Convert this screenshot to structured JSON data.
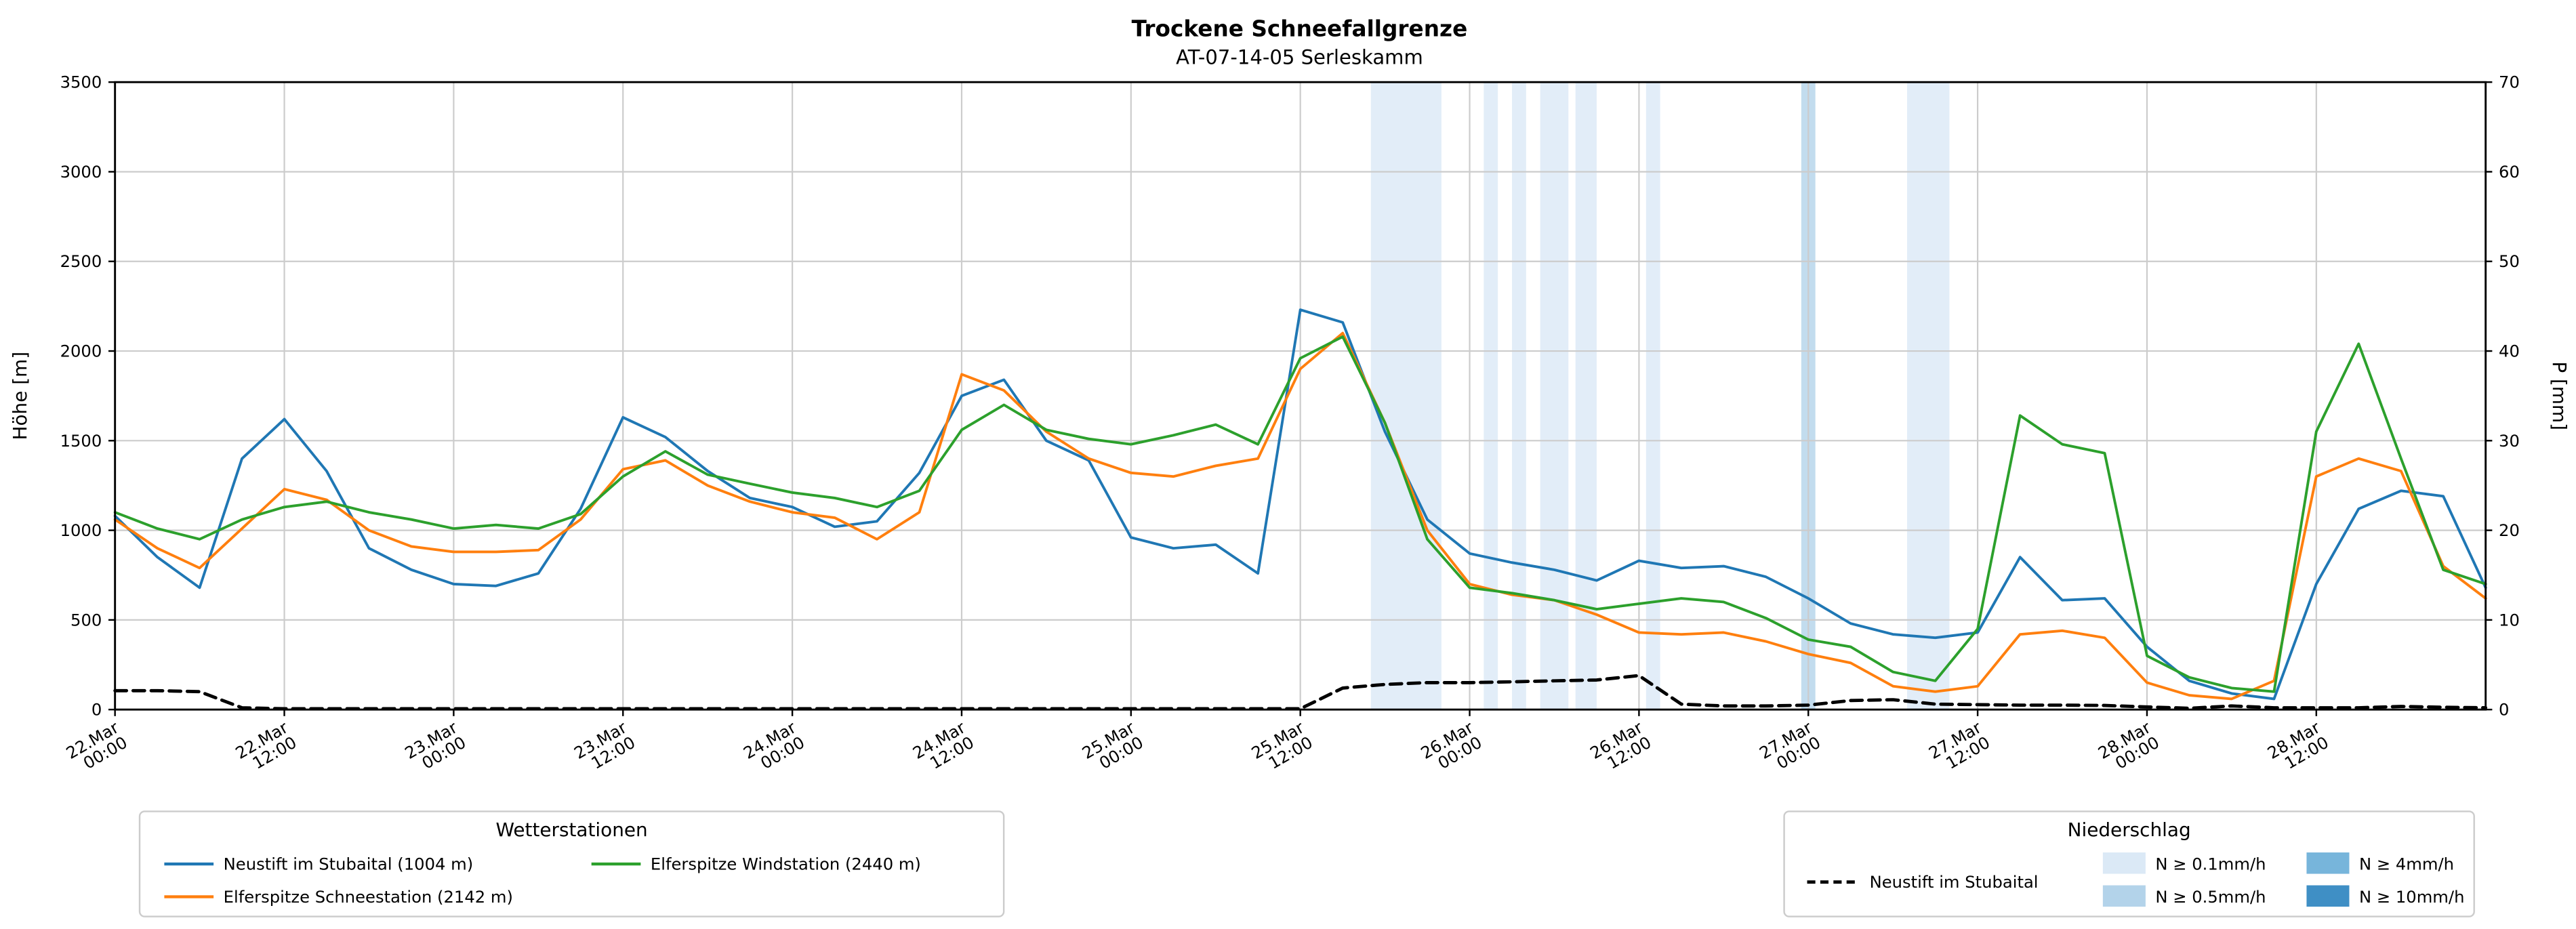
{
  "title": "Trockene Schneefallgrenze",
  "subtitle": "AT-07-14-05 Serleskamm",
  "axes": {
    "y_left_label": "Höhe [m]",
    "y_right_label": "P [mm]",
    "y_left_ticks": [
      0,
      500,
      1000,
      1500,
      2000,
      2500,
      3000,
      3500
    ],
    "y_right_ticks": [
      0,
      10,
      20,
      30,
      40,
      50,
      60,
      70
    ],
    "x_tick_hours": [
      0,
      12,
      24,
      36,
      48,
      60,
      72,
      84,
      96,
      108,
      120,
      132,
      144,
      156
    ],
    "x_tick_labels": [
      [
        "22.Mar",
        "00:00"
      ],
      [
        "22.Mar",
        "12:00"
      ],
      [
        "23.Mar",
        "00:00"
      ],
      [
        "23.Mar",
        "12:00"
      ],
      [
        "24.Mar",
        "00:00"
      ],
      [
        "24.Mar",
        "12:00"
      ],
      [
        "25.Mar",
        "00:00"
      ],
      [
        "25.Mar",
        "12:00"
      ],
      [
        "26.Mar",
        "00:00"
      ],
      [
        "26.Mar",
        "12:00"
      ],
      [
        "27.Mar",
        "00:00"
      ],
      [
        "27.Mar",
        "12:00"
      ],
      [
        "28.Mar",
        "00:00"
      ],
      [
        "28.Mar",
        "12:00"
      ]
    ]
  },
  "chart_data": {
    "type": "line",
    "x_unit": "hours since 22.Mar 00:00",
    "x_range_hours": [
      0,
      168
    ],
    "ylim_left": [
      0,
      3500
    ],
    "ylim_right": [
      0,
      70
    ],
    "grid": true,
    "x_hours": [
      0,
      3,
      6,
      9,
      12,
      15,
      18,
      21,
      24,
      27,
      30,
      33,
      36,
      39,
      42,
      45,
      48,
      51,
      54,
      57,
      60,
      63,
      66,
      69,
      72,
      75,
      78,
      81,
      84,
      87,
      90,
      93,
      96,
      99,
      102,
      105,
      108,
      111,
      114,
      117,
      120,
      123,
      126,
      129,
      132,
      135,
      138,
      141,
      144,
      147,
      150,
      153,
      156,
      159,
      162,
      165,
      168
    ],
    "series": [
      {
        "name": "Neustift im Stubaital (1004 m)",
        "color": "#1f77b4",
        "style": "solid",
        "axis": "left",
        "values": [
          1080,
          850,
          680,
          1400,
          1620,
          1330,
          900,
          780,
          700,
          690,
          760,
          1120,
          1630,
          1520,
          1330,
          1180,
          1130,
          1020,
          1050,
          1320,
          1750,
          1840,
          1500,
          1390,
          960,
          900,
          920,
          760,
          2230,
          2160,
          1550,
          1060,
          870,
          820,
          780,
          720,
          830,
          790,
          800,
          740,
          620,
          480,
          420,
          400,
          430,
          850,
          610,
          620,
          350,
          160,
          90,
          60,
          700,
          1120,
          1220,
          1190,
          680
        ]
      },
      {
        "name": "Elferspitze Schneestation (2142 m)",
        "color": "#ff7f0e",
        "style": "solid",
        "axis": "left",
        "values": [
          1060,
          900,
          790,
          1010,
          1230,
          1170,
          1000,
          910,
          880,
          880,
          890,
          1060,
          1340,
          1390,
          1250,
          1160,
          1100,
          1070,
          950,
          1100,
          1870,
          1780,
          1550,
          1400,
          1320,
          1300,
          1360,
          1400,
          1900,
          2100,
          1600,
          1000,
          700,
          640,
          610,
          530,
          430,
          420,
          430,
          380,
          310,
          260,
          130,
          100,
          130,
          420,
          440,
          400,
          150,
          80,
          60,
          160,
          1300,
          1400,
          1330,
          800,
          620
        ]
      },
      {
        "name": "Elferspitze Windstation (2440 m)",
        "color": "#2ca02c",
        "style": "solid",
        "axis": "left",
        "values": [
          1100,
          1010,
          950,
          1060,
          1130,
          1160,
          1100,
          1060,
          1010,
          1030,
          1010,
          1090,
          1300,
          1440,
          1310,
          1260,
          1210,
          1180,
          1130,
          1220,
          1560,
          1700,
          1560,
          1510,
          1480,
          1530,
          1590,
          1480,
          1960,
          2080,
          1600,
          950,
          680,
          650,
          610,
          560,
          590,
          620,
          600,
          510,
          390,
          350,
          210,
          160,
          450,
          1640,
          1480,
          1430,
          300,
          180,
          120,
          100,
          1550,
          2040,
          1400,
          780,
          700
        ]
      },
      {
        "name": "Neustift im Stubaital",
        "color": "#000000",
        "style": "dashed",
        "axis": "right",
        "values": [
          2.1,
          2.1,
          2.0,
          0.2,
          0.1,
          0.1,
          0.1,
          0.1,
          0.1,
          0.1,
          0.1,
          0.1,
          0.1,
          0.1,
          0.1,
          0.1,
          0.1,
          0.1,
          0.1,
          0.1,
          0.1,
          0.1,
          0.1,
          0.1,
          0.1,
          0.1,
          0.1,
          0.1,
          0.1,
          2.4,
          2.8,
          3.0,
          3.0,
          3.1,
          3.2,
          3.3,
          3.8,
          0.6,
          0.4,
          0.4,
          0.5,
          1.0,
          1.1,
          0.6,
          0.55,
          0.5,
          0.5,
          0.45,
          0.3,
          0.15,
          0.4,
          0.2,
          0.2,
          0.2,
          0.35,
          0.25,
          0.2
        ]
      }
    ],
    "precip_bands": [
      {
        "start_h": 89,
        "end_h": 94,
        "level": "0.1"
      },
      {
        "start_h": 97,
        "end_h": 98,
        "level": "0.1"
      },
      {
        "start_h": 99,
        "end_h": 100,
        "level": "0.1"
      },
      {
        "start_h": 101,
        "end_h": 103,
        "level": "0.1"
      },
      {
        "start_h": 103.5,
        "end_h": 105,
        "level": "0.1"
      },
      {
        "start_h": 108.5,
        "end_h": 109.5,
        "level": "0.1"
      },
      {
        "start_h": 119.5,
        "end_h": 120.5,
        "level": "0.5"
      },
      {
        "start_h": 127,
        "end_h": 130,
        "level": "0.1"
      }
    ],
    "band_colors": {
      "0.1": "#dbe9f6",
      "0.5": "#b3d3ea",
      "4": "#77b5db",
      "10": "#3f8fc5"
    },
    "grid_color": "#cccccc"
  },
  "legend_stations": {
    "title": "Wetterstationen",
    "items": [
      {
        "label": "Neustift im Stubaital (1004 m)",
        "color": "#1f77b4"
      },
      {
        "label": "Elferspitze Schneestation (2142 m)",
        "color": "#ff7f0e"
      },
      {
        "label": "Elferspitze Windstation (2440 m)",
        "color": "#2ca02c"
      }
    ]
  },
  "legend_precip": {
    "title": "Niederschlag",
    "line_label": "Neustift im Stubaital",
    "items": [
      {
        "label": "N ≥ 0.1mm/h",
        "level": "0.1"
      },
      {
        "label": "N ≥ 0.5mm/h",
        "level": "0.5"
      },
      {
        "label": "N ≥ 4mm/h",
        "level": "4"
      },
      {
        "label": "N ≥ 10mm/h",
        "level": "10"
      }
    ]
  }
}
